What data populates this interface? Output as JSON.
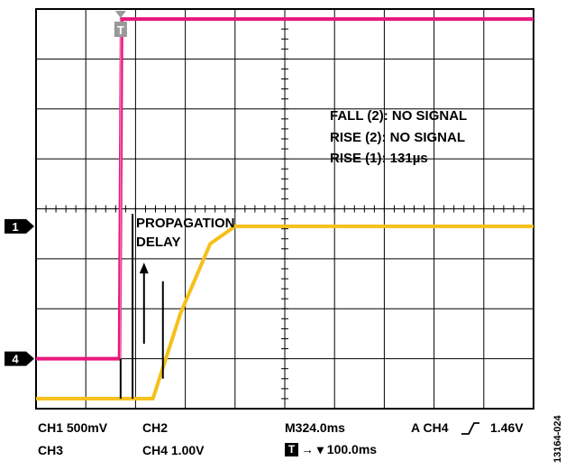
{
  "chart_data": {
    "type": "line",
    "title": "",
    "grid": true,
    "grid_divisions": {
      "x": 10,
      "y": 8
    },
    "trigger_marker": "T",
    "channel_markers": [
      "1",
      "4"
    ],
    "annotations": {
      "measurements": [
        "FALL (2): NO SIGNAL",
        "RISE (2): NO SIGNAL",
        "RISE (1): 131µs"
      ],
      "propagation_delay": [
        "PROPAGATION",
        "DELAY"
      ]
    },
    "series": [
      {
        "channel": "4",
        "color": "#e8177d",
        "x_div": [
          0,
          1.68,
          1.72,
          10
        ],
        "y_div": [
          1.0,
          1.0,
          7.8,
          7.8
        ]
      },
      {
        "channel": "1",
        "color": "#f5c018",
        "x_div": [
          0,
          2.35,
          2.9,
          3.5,
          4.0,
          10
        ],
        "y_div": [
          0.2,
          0.2,
          1.9,
          3.3,
          3.65,
          3.65
        ]
      }
    ],
    "footer": {
      "ch1": "CH1  500mV",
      "ch2": "CH2",
      "ch3": "CH3",
      "ch4": "CH4  1.00V",
      "timebase": "M324.0ms",
      "trigger_source": "A  CH4",
      "trigger_level": "1.46V",
      "trigger_position": "→ ▾ 100.0ms"
    },
    "figure_id": "13164-024"
  }
}
